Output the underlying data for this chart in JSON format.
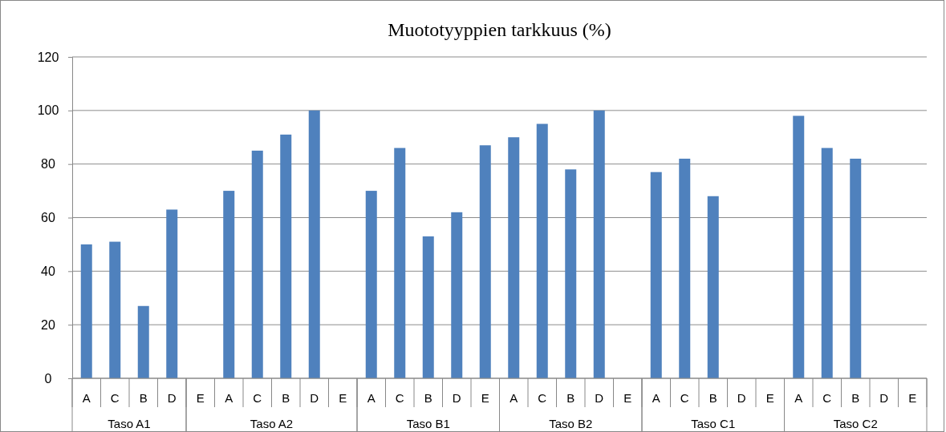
{
  "chart_data": {
    "type": "bar",
    "title": "Muototyyppien tarkkuus (%)",
    "categories": [
      "A",
      "C",
      "B",
      "D",
      "E",
      "A",
      "C",
      "B",
      "D",
      "E",
      "A",
      "C",
      "B",
      "D",
      "E",
      "A",
      "C",
      "B",
      "D",
      "E",
      "A",
      "C",
      "B",
      "D",
      "E",
      "A",
      "C",
      "B",
      "D",
      "E"
    ],
    "values": [
      50,
      51,
      27,
      63,
      null,
      70,
      85,
      91,
      100,
      null,
      70,
      86,
      53,
      62,
      87,
      90,
      95,
      78,
      100,
      null,
      77,
      82,
      68,
      null,
      null,
      98,
      86,
      82,
      null,
      null
    ],
    "color": "#4f81bd",
    "ylim": [
      0,
      120
    ],
    "yticks": [
      0,
      20,
      40,
      60,
      80,
      100,
      120
    ],
    "grid": "y",
    "annotations": [
      "Taso A1",
      "Taso A2",
      "Taso B1",
      "Taso B2",
      "Taso C1",
      "Taso C2"
    ]
  }
}
